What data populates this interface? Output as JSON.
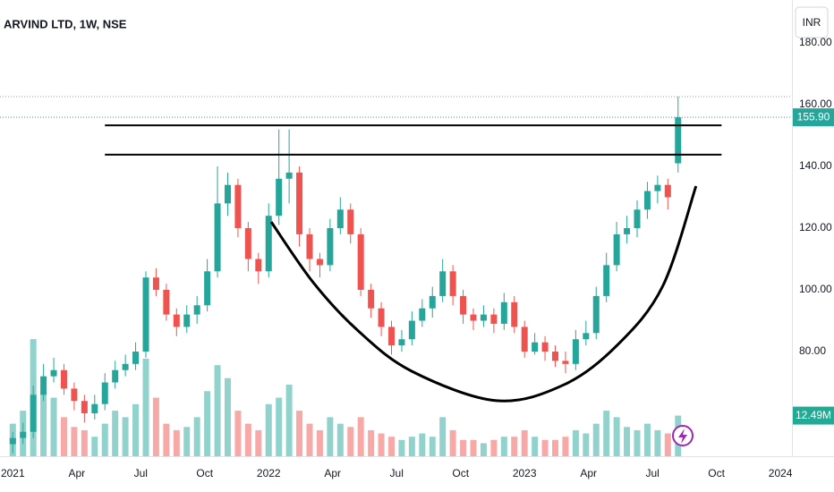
{
  "chart_data": {
    "type": "candlestick",
    "title": "ARVIND LTD, 1W, NSE",
    "currency": "INR",
    "x": [
      2021.0,
      2021.04,
      2021.08,
      2021.12,
      2021.16,
      2021.2,
      2021.24,
      2021.28,
      2021.32,
      2021.36,
      2021.4,
      2021.44,
      2021.48,
      2021.52,
      2021.56,
      2021.6,
      2021.64,
      2021.68,
      2021.72,
      2021.76,
      2021.8,
      2021.84,
      2021.88,
      2021.92,
      2021.96,
      2022.0,
      2022.04,
      2022.08,
      2022.12,
      2022.16,
      2022.2,
      2022.24,
      2022.28,
      2022.32,
      2022.36,
      2022.4,
      2022.44,
      2022.48,
      2022.52,
      2022.56,
      2022.6,
      2022.64,
      2022.68,
      2022.72,
      2022.76,
      2022.8,
      2022.84,
      2022.88,
      2022.92,
      2022.96,
      2023.0,
      2023.04,
      2023.08,
      2023.12,
      2023.16,
      2023.2,
      2023.24,
      2023.28,
      2023.32,
      2023.36,
      2023.4,
      2023.44,
      2023.48,
      2023.52,
      2023.56,
      2023.6
    ],
    "open": [
      50,
      52,
      54,
      66,
      72,
      74,
      68,
      64,
      60,
      63,
      70,
      74,
      76,
      80,
      104,
      100,
      92,
      88,
      92,
      95,
      106,
      128,
      134,
      120,
      110,
      106,
      124,
      136,
      138,
      118,
      110,
      108,
      120,
      126,
      118,
      100,
      94,
      88,
      82,
      84,
      90,
      94,
      98,
      106,
      98,
      92,
      90,
      92,
      89,
      96,
      88,
      80,
      83,
      80,
      77,
      76,
      84,
      86,
      98,
      108,
      118,
      120,
      126,
      132,
      134,
      141
    ],
    "high": [
      54,
      57,
      69,
      76,
      78,
      76,
      70,
      66,
      66,
      73,
      77,
      79,
      83,
      106,
      107,
      102,
      94,
      95,
      98,
      110,
      140,
      138,
      136,
      122,
      112,
      128,
      152,
      152,
      140,
      120,
      112,
      123,
      130,
      128,
      120,
      102,
      96,
      90,
      87,
      93,
      97,
      101,
      110,
      108,
      100,
      94,
      95,
      94,
      99,
      98,
      90,
      86,
      85,
      82,
      80,
      87,
      90,
      101,
      112,
      122,
      124,
      129,
      135,
      137,
      136,
      162.6
    ],
    "low": [
      47,
      50,
      52,
      64,
      70,
      66,
      61,
      57,
      58,
      61,
      68,
      72,
      74,
      78,
      98,
      90,
      85,
      86,
      89,
      93,
      104,
      124,
      117,
      106,
      102,
      104,
      121,
      128,
      114,
      106,
      104,
      106,
      118,
      115,
      98,
      91,
      85,
      79,
      80,
      82,
      88,
      91,
      96,
      95,
      89,
      87,
      88,
      86,
      87,
      86,
      78,
      79,
      77,
      75,
      73,
      74,
      82,
      84,
      96,
      106,
      115,
      117,
      123,
      128,
      126,
      138
    ],
    "close": [
      52,
      54,
      66,
      72,
      74,
      68,
      64,
      60,
      63,
      70,
      74,
      76,
      80,
      104,
      100,
      92,
      88,
      92,
      95,
      106,
      128,
      134,
      120,
      110,
      106,
      124,
      136,
      138,
      118,
      110,
      108,
      120,
      126,
      118,
      100,
      94,
      88,
      82,
      84,
      90,
      94,
      98,
      106,
      98,
      92,
      90,
      92,
      89,
      96,
      88,
      80,
      83,
      80,
      77,
      76,
      84,
      86,
      98,
      108,
      118,
      120,
      126,
      132,
      134,
      130,
      155.9
    ],
    "close_value_labels": [
      null,
      null,
      null,
      null,
      null,
      null,
      null,
      null,
      null,
      null,
      null,
      null,
      null,
      null,
      null,
      null,
      null,
      null,
      null,
      null,
      null,
      null,
      null,
      null,
      null,
      null,
      null,
      null,
      null,
      null,
      null,
      null,
      null,
      null,
      null,
      null,
      null,
      null,
      null,
      null,
      null,
      null,
      null,
      null,
      null,
      null,
      null,
      null,
      null,
      null,
      null,
      null,
      null,
      null,
      null,
      null,
      null,
      null,
      null,
      null,
      null,
      null,
      null,
      null,
      null,
      "155.90"
    ],
    "volume": [
      10000000,
      14000000,
      36000000,
      20000000,
      18000000,
      12000000,
      9000000,
      8000000,
      6000000,
      10000000,
      14000000,
      12000000,
      16000000,
      30000000,
      18000000,
      10000000,
      8000000,
      9000000,
      12000000,
      20000000,
      28000000,
      24000000,
      14000000,
      10000000,
      8000000,
      16000000,
      18000000,
      22000000,
      14000000,
      10000000,
      8000000,
      12000000,
      10000000,
      9000000,
      12000000,
      8000000,
      7000000,
      6000000,
      5000000,
      6000000,
      7000000,
      6000000,
      12000000,
      8000000,
      5000000,
      5000000,
      4000000,
      5000000,
      6000000,
      6000000,
      8000000,
      6000000,
      5000000,
      5000000,
      6000000,
      8000000,
      7000000,
      10000000,
      14000000,
      12000000,
      9000000,
      8000000,
      10000000,
      8000000,
      7000000,
      12490000
    ],
    "volume_value_labels": [
      null,
      null,
      null,
      null,
      null,
      null,
      null,
      null,
      null,
      null,
      null,
      null,
      null,
      null,
      null,
      null,
      null,
      null,
      null,
      null,
      null,
      null,
      null,
      null,
      null,
      null,
      null,
      null,
      null,
      null,
      null,
      null,
      null,
      null,
      null,
      null,
      null,
      null,
      null,
      null,
      null,
      null,
      null,
      null,
      null,
      null,
      null,
      null,
      null,
      null,
      null,
      null,
      null,
      null,
      null,
      null,
      null,
      null,
      null,
      null,
      null,
      null,
      null,
      null,
      null,
      "12.49M"
    ],
    "vlim": [
      0,
      44000000
    ],
    "up_color": "#26a69a",
    "down_color": "#ef5350",
    "up_volume_color": "#92d2cc",
    "down_volume_color": "#f7a9a7",
    "xlim": [
      2020.95,
      2024.045
    ],
    "xticks": [
      {
        "value": 2021,
        "label": "2021"
      },
      {
        "value": 2021.25,
        "label": "Apr"
      },
      {
        "value": 2021.5,
        "label": "Jul"
      },
      {
        "value": 2021.75,
        "label": "Oct"
      },
      {
        "value": 2022,
        "label": "2022"
      },
      {
        "value": 2022.25,
        "label": "Apr"
      },
      {
        "value": 2022.5,
        "label": "Jul"
      },
      {
        "value": 2022.75,
        "label": "Oct"
      },
      {
        "value": 2023,
        "label": "2023"
      },
      {
        "value": 2023.25,
        "label": "Apr"
      },
      {
        "value": 2023.5,
        "label": "Jul"
      },
      {
        "value": 2023.75,
        "label": "Oct"
      },
      {
        "value": 2024,
        "label": "2024"
      }
    ],
    "ylim": [
      46.1,
      193.9
    ],
    "yticks": [
      {
        "value": 80,
        "label": "80.00"
      },
      {
        "value": 100,
        "label": "100.00"
      },
      {
        "value": 120,
        "label": "120.00"
      },
      {
        "value": 140,
        "label": "140.00"
      },
      {
        "value": 160,
        "label": "160.00"
      },
      {
        "value": 180,
        "label": "180.00"
      }
    ],
    "hlines": [
      {
        "value": 153.3,
        "x": [
          2021.36,
          2023.77
        ]
      },
      {
        "value": 143.8,
        "x": [
          2021.36,
          2023.77
        ]
      }
    ],
    "curve": {
      "x": [
        2022.01,
        2022.175,
        2022.35,
        2022.56,
        2022.89,
        2023.155,
        2023.365,
        2023.54,
        2023.67
      ],
      "y": [
        122,
        102.3,
        86.7,
        73.6,
        64.1,
        69.3,
        82.3,
        101.2,
        133.6
      ]
    }
  }
}
